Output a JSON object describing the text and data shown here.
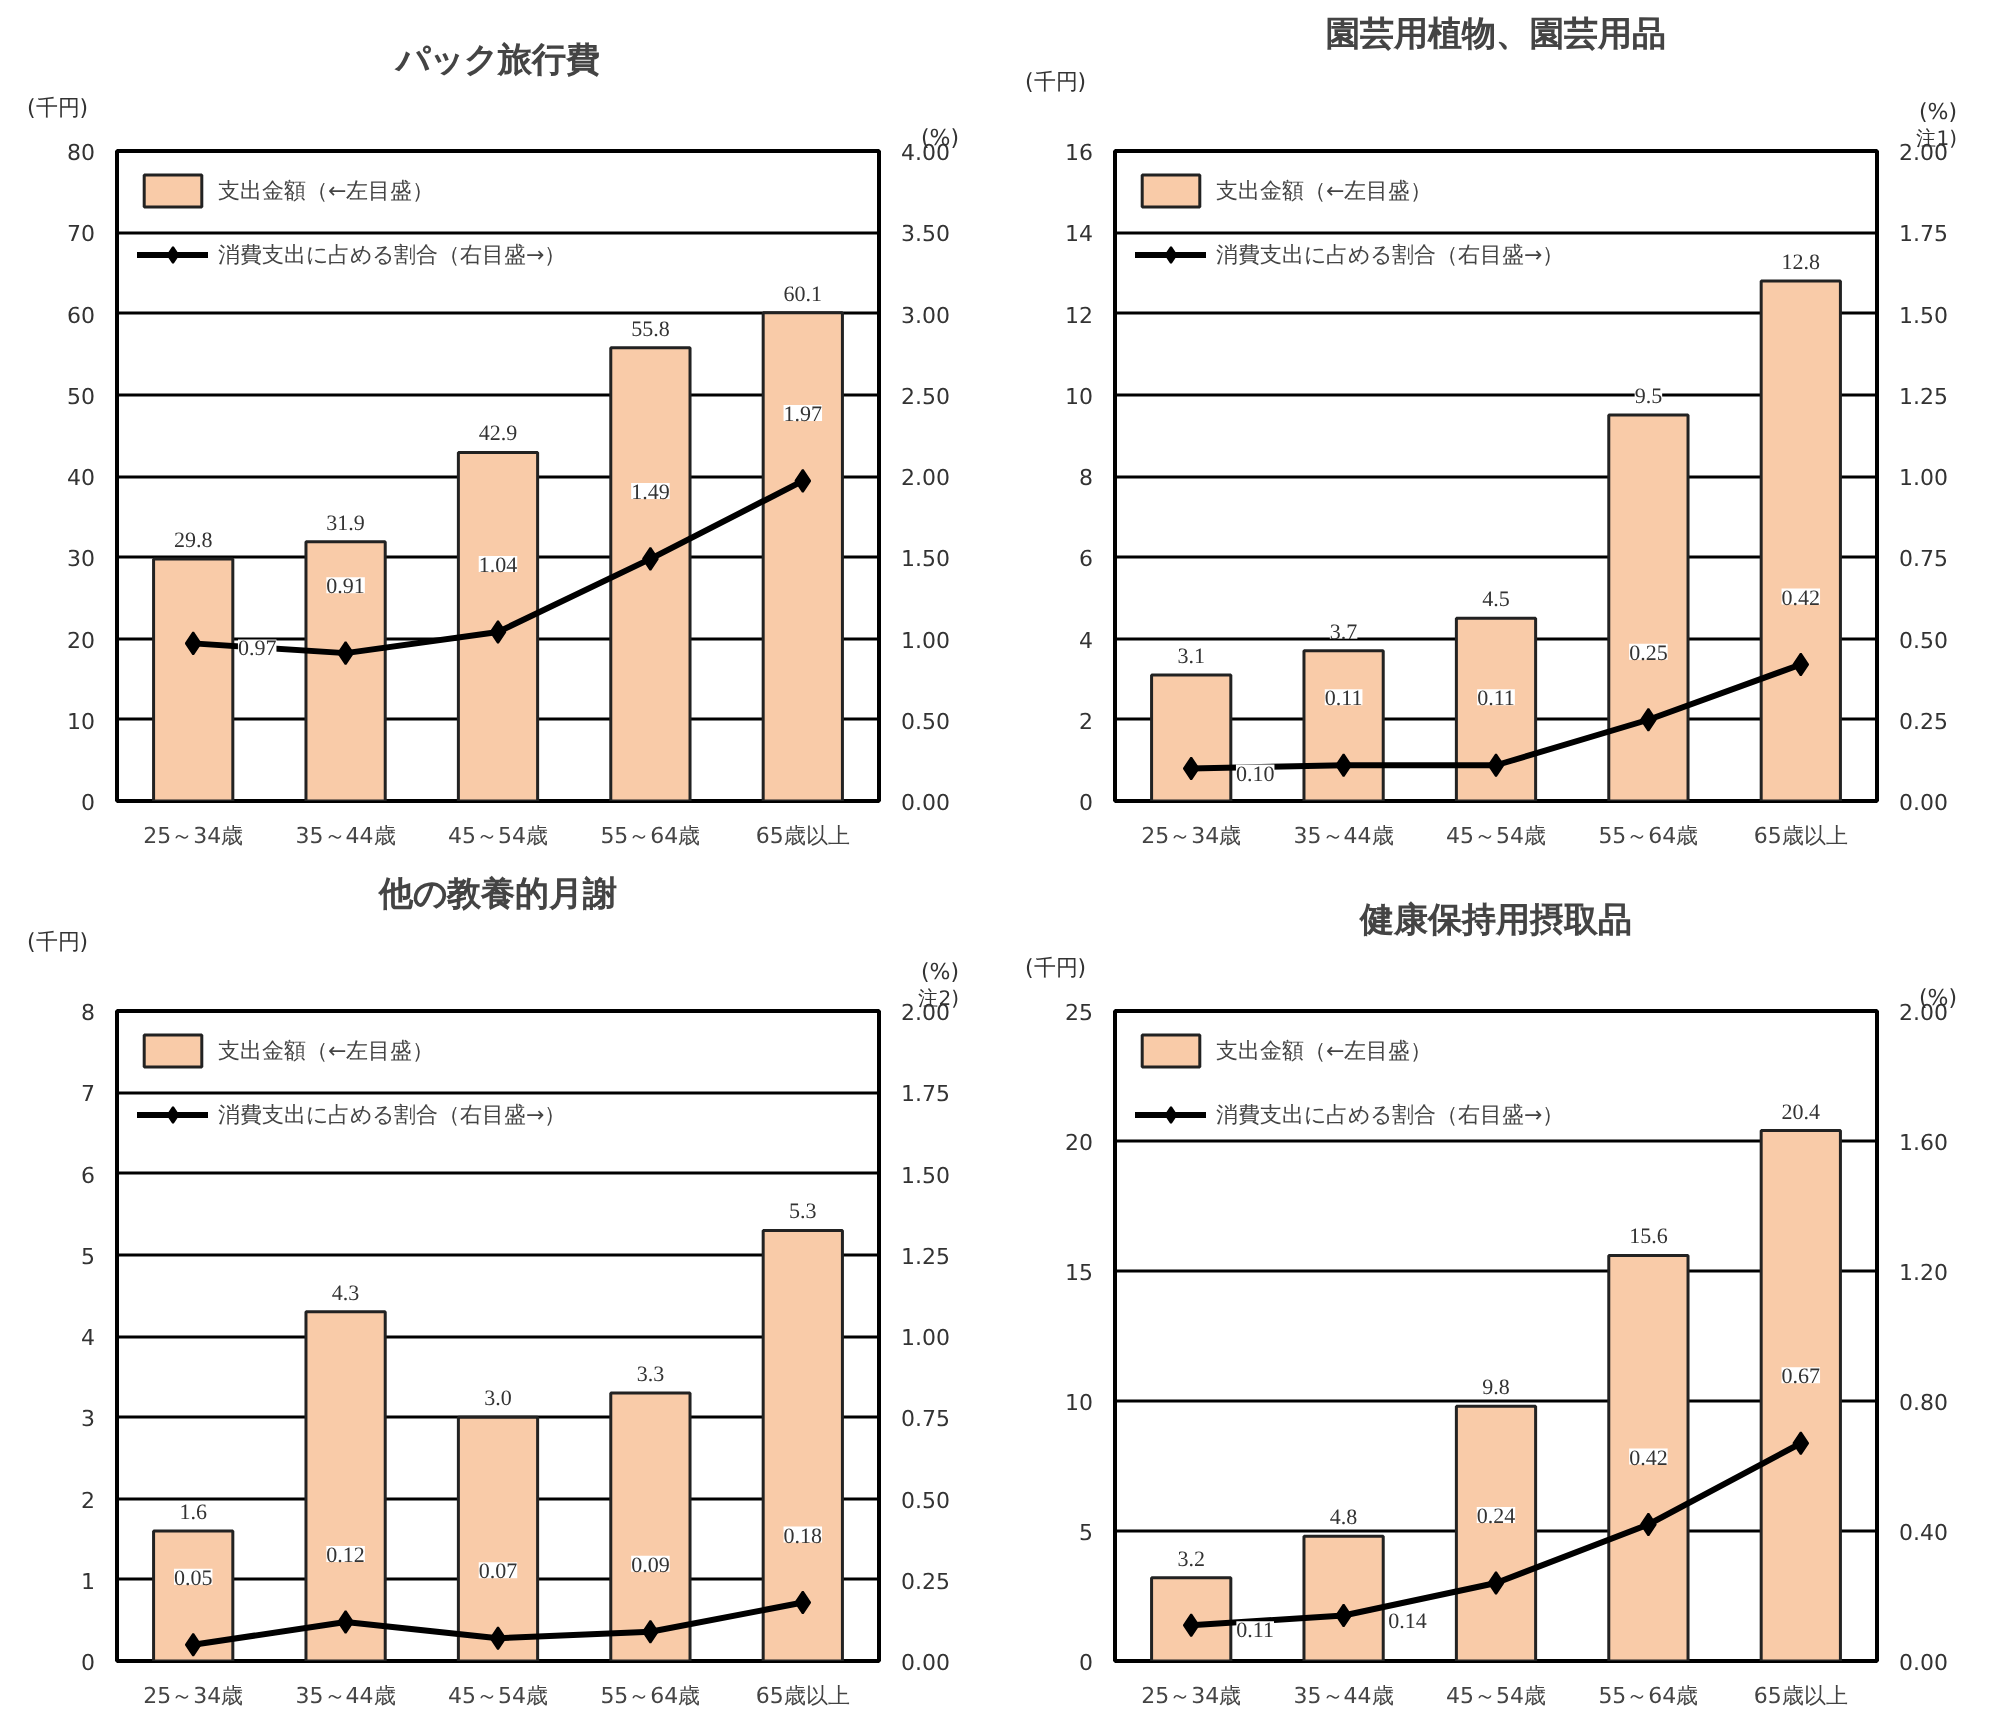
{
  "chart_data": [
    {
      "type": "bar",
      "title": "パック旅行費",
      "ylabel": "(千円)",
      "y2label": "(%)",
      "categories": [
        "25～34歳",
        "35～44歳",
        "45～54歳",
        "55～64歳",
        "65歳以上"
      ],
      "series": [
        {
          "name": "支出金額（←左目盛）",
          "color": "#f9cba8",
          "values": [
            29.8,
            31.9,
            42.9,
            55.8,
            60.1
          ],
          "value_labels": [
            "29.8",
            "31.9",
            "42.9",
            "55.8",
            "60.1"
          ]
        },
        {
          "name": "消費支出に占める割合（右目盛→）",
          "type": "line",
          "axis": "y2",
          "marker": "diamond",
          "color": "#000000",
          "values": [
            0.97,
            0.91,
            1.04,
            1.49,
            1.97
          ],
          "value_labels": [
            "0.97",
            "0.91",
            "1.04",
            "1.49",
            "1.97"
          ]
        }
      ],
      "ylim": [
        0,
        80
      ],
      "yticks": [
        0,
        10,
        20,
        30,
        40,
        50,
        60,
        70,
        80
      ],
      "y2lim": [
        0,
        4
      ],
      "y2ticks": [
        {
          "value": 0,
          "label": "0.00"
        },
        {
          "value": 0.5,
          "label": "0.50"
        },
        {
          "value": 1,
          "label": "1.00"
        },
        {
          "value": 1.5,
          "label": "1.50"
        },
        {
          "value": 2,
          "label": "2.00"
        },
        {
          "value": 2.5,
          "label": "2.50"
        },
        {
          "value": 3,
          "label": "3.00"
        },
        {
          "value": 3.5,
          "label": "3.50"
        },
        {
          "value": 4,
          "label": "4.00"
        }
      ],
      "grid": "y",
      "legend": "top left"
    },
    {
      "type": "bar",
      "title": "園芸用植物、園芸用品",
      "ylabel": "(千円)",
      "y2label": "(%)",
      "annotations": [
        "注1)"
      ],
      "categories": [
        "25～34歳",
        "35～44歳",
        "45～54歳",
        "55～64歳",
        "65歳以上"
      ],
      "series": [
        {
          "name": "支出金額（←左目盛）",
          "color": "#f9cba8",
          "values": [
            3.1,
            3.7,
            4.5,
            9.5,
            12.8
          ],
          "value_labels": [
            "3.1",
            "3.7",
            "4.5",
            "9.5",
            "12.8"
          ]
        },
        {
          "name": "消費支出に占める割合（右目盛→）",
          "type": "line",
          "axis": "y2",
          "marker": "diamond",
          "color": "#000000",
          "values": [
            0.1,
            0.11,
            0.11,
            0.25,
            0.42
          ],
          "value_labels": [
            "0.10",
            "0.11",
            "0.11",
            "0.25",
            "0.42"
          ]
        }
      ],
      "ylim": [
        0,
        16
      ],
      "yticks": [
        0,
        2,
        4,
        6,
        8,
        10,
        12,
        14,
        16
      ],
      "y2lim": [
        0,
        2
      ],
      "y2ticks": [
        {
          "value": 0,
          "label": "0.00"
        },
        {
          "value": 0.25,
          "label": "0.25"
        },
        {
          "value": 0.5,
          "label": "0.50"
        },
        {
          "value": 0.75,
          "label": "0.75"
        },
        {
          "value": 1,
          "label": "1.00"
        },
        {
          "value": 1.25,
          "label": "1.25"
        },
        {
          "value": 1.5,
          "label": "1.50"
        },
        {
          "value": 1.75,
          "label": "1.75"
        },
        {
          "value": 2,
          "label": "2.00"
        }
      ],
      "grid": "y",
      "legend": "top left"
    },
    {
      "type": "bar",
      "title": "他の教養的月謝",
      "ylabel": "(千円)",
      "y2label": "(%)",
      "annotations": [
        "注2)"
      ],
      "categories": [
        "25～34歳",
        "35～44歳",
        "45～54歳",
        "55～64歳",
        "65歳以上"
      ],
      "series": [
        {
          "name": "支出金額（←左目盛）",
          "color": "#f9cba8",
          "values": [
            1.6,
            4.3,
            3.0,
            3.3,
            5.3
          ],
          "value_labels": [
            "1.6",
            "4.3",
            "3.0",
            "3.3",
            "5.3"
          ]
        },
        {
          "name": "消費支出に占める割合（右目盛→）",
          "type": "line",
          "axis": "y2",
          "marker": "diamond",
          "color": "#000000",
          "values": [
            0.05,
            0.12,
            0.07,
            0.09,
            0.18
          ],
          "value_labels": [
            "0.05",
            "0.12",
            "0.07",
            "0.09",
            "0.18"
          ]
        }
      ],
      "ylim": [
        0,
        8
      ],
      "yticks": [
        0,
        1,
        2,
        3,
        4,
        5,
        6,
        7,
        8
      ],
      "y2lim": [
        0,
        2
      ],
      "y2ticks": [
        {
          "value": 0,
          "label": "0.00"
        },
        {
          "value": 0.25,
          "label": "0.25"
        },
        {
          "value": 0.5,
          "label": "0.50"
        },
        {
          "value": 0.75,
          "label": "0.75"
        },
        {
          "value": 1,
          "label": "1.00"
        },
        {
          "value": 1.25,
          "label": "1.25"
        },
        {
          "value": 1.5,
          "label": "1.50"
        },
        {
          "value": 1.75,
          "label": "1.75"
        },
        {
          "value": 2,
          "label": "2.00"
        }
      ],
      "grid": "y",
      "legend": "top left"
    },
    {
      "type": "bar",
      "title": "健康保持用摂取品",
      "ylabel": "(千円)",
      "y2label": "(%)",
      "categories": [
        "25～34歳",
        "35～44歳",
        "45～54歳",
        "55～64歳",
        "65歳以上"
      ],
      "series": [
        {
          "name": "支出金額（←左目盛）",
          "color": "#f9cba8",
          "values": [
            3.2,
            4.8,
            9.8,
            15.6,
            20.4
          ],
          "value_labels": [
            "3.2",
            "4.8",
            "9.8",
            "15.6",
            "20.4"
          ]
        },
        {
          "name": "消費支出に占める割合（右目盛→）",
          "type": "line",
          "axis": "y2",
          "marker": "diamond",
          "color": "#000000",
          "values": [
            0.11,
            0.14,
            0.24,
            0.42,
            0.67
          ],
          "value_labels": [
            "0.11",
            "0.14",
            "0.24",
            "0.42",
            "0.67"
          ]
        }
      ],
      "ylim": [
        0,
        25
      ],
      "yticks": [
        0,
        5,
        10,
        15,
        20,
        25
      ],
      "y2lim": [
        0,
        2
      ],
      "y2ticks": [
        {
          "value": 0,
          "label": "0.00"
        },
        {
          "value": 0.4,
          "label": "0.40"
        },
        {
          "value": 0.8,
          "label": "0.80"
        },
        {
          "value": 1.2,
          "label": "1.20"
        },
        {
          "value": 1.6,
          "label": "1.60"
        },
        {
          "value": 2,
          "label": "2.00"
        }
      ],
      "grid": "y",
      "legend": "top left"
    }
  ]
}
